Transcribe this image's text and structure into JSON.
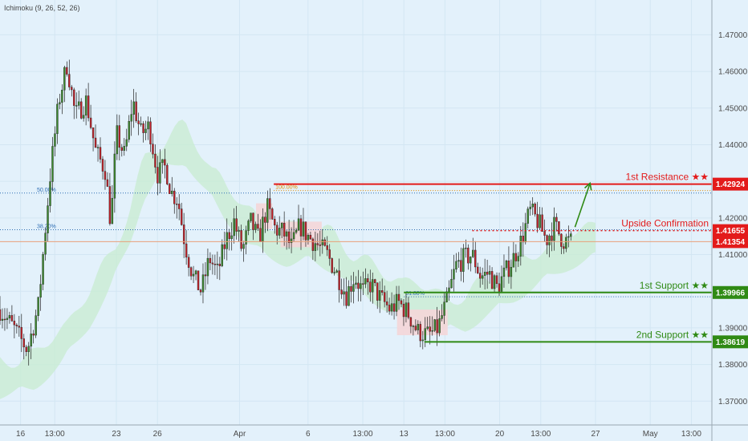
{
  "indicator": "Ichimoku (9, 26, 52, 26)",
  "chart_data": {
    "type": "candlestick",
    "instrument": "",
    "title": "",
    "x_ticks": [
      {
        "label": "16",
        "day": 0
      },
      {
        "label": "13:00",
        "day": 2.5
      },
      {
        "label": "23",
        "day": 7
      },
      {
        "label": "26",
        "day": 10
      },
      {
        "label": "Apr",
        "day": 16
      },
      {
        "label": "6",
        "day": 21
      },
      {
        "label": "13:00",
        "day": 25
      },
      {
        "label": "13",
        "day": 28
      },
      {
        "label": "13:00",
        "day": 31
      },
      {
        "label": "20",
        "day": 35
      },
      {
        "label": "13:00",
        "day": 38
      },
      {
        "label": "27",
        "day": 42
      },
      {
        "label": "May",
        "day": 46
      },
      {
        "label": "13:00",
        "day": 49
      }
    ],
    "x_range": [
      -1.5,
      50.5
    ],
    "y_ticks": [
      1.37,
      1.38,
      1.39,
      1.4,
      1.41,
      1.42,
      1.43,
      1.44,
      1.45,
      1.46,
      1.47
    ],
    "y_tick_labels": [
      "1.37000",
      "1.38000",
      "1.39000",
      "1.40000",
      "1.41000",
      "1.42000",
      "1.43000",
      "1.44000",
      "1.45000",
      "1.46000",
      "1.47000"
    ],
    "y_range": [
      1.3635,
      1.4795
    ],
    "close_path": [
      [
        -1.5,
        1.395
      ],
      [
        -0.5,
        1.39
      ],
      [
        0.5,
        1.384
      ],
      [
        1.3,
        1.396
      ],
      [
        2.2,
        1.433
      ],
      [
        2.8,
        1.452
      ],
      [
        3.4,
        1.462
      ],
      [
        4.0,
        1.448
      ],
      [
        4.8,
        1.452
      ],
      [
        5.5,
        1.438
      ],
      [
        6.2,
        1.433
      ],
      [
        6.6,
        1.418
      ],
      [
        7.0,
        1.443
      ],
      [
        7.6,
        1.437
      ],
      [
        8.2,
        1.452
      ],
      [
        8.8,
        1.443
      ],
      [
        9.4,
        1.445
      ],
      [
        10.0,
        1.432
      ],
      [
        10.6,
        1.434
      ],
      [
        11.0,
        1.427
      ],
      [
        11.5,
        1.425
      ],
      [
        12.0,
        1.413
      ],
      [
        12.6,
        1.404
      ],
      [
        13.2,
        1.4
      ],
      [
        13.8,
        1.409
      ],
      [
        14.4,
        1.405
      ],
      [
        15.0,
        1.414
      ],
      [
        15.6,
        1.419
      ],
      [
        16.2,
        1.411
      ],
      [
        16.8,
        1.419
      ],
      [
        17.4,
        1.414
      ],
      [
        18.0,
        1.423
      ],
      [
        18.6,
        1.417
      ],
      [
        19.2,
        1.416
      ],
      [
        19.8,
        1.412
      ],
      [
        20.4,
        1.418
      ],
      [
        21.0,
        1.415
      ],
      [
        21.6,
        1.413
      ],
      [
        22.4,
        1.41
      ],
      [
        23.2,
        1.404
      ],
      [
        23.8,
        1.399
      ],
      [
        24.4,
        1.404
      ],
      [
        25.0,
        1.4
      ],
      [
        25.6,
        1.402
      ],
      [
        26.3,
        1.398
      ],
      [
        27.0,
        1.395
      ],
      [
        27.6,
        1.397
      ],
      [
        28.3,
        1.394
      ],
      [
        29.0,
        1.389
      ],
      [
        29.8,
        1.388
      ],
      [
        30.5,
        1.39
      ],
      [
        31.2,
        1.398
      ],
      [
        31.8,
        1.407
      ],
      [
        32.4,
        1.409
      ],
      [
        33.0,
        1.41
      ],
      [
        33.6,
        1.404
      ],
      [
        34.2,
        1.405
      ],
      [
        34.8,
        1.401
      ],
      [
        35.4,
        1.405
      ],
      [
        36.0,
        1.409
      ],
      [
        36.6,
        1.414
      ],
      [
        37.2,
        1.422
      ],
      [
        37.8,
        1.419
      ],
      [
        38.4,
        1.414
      ],
      [
        39.0,
        1.418
      ],
      [
        39.6,
        1.414
      ],
      [
        40.2,
        1.4135
      ]
    ],
    "kumo_path": [
      [
        -1.5,
        1.376
      ],
      [
        1.0,
        1.378
      ],
      [
        3.0,
        1.385
      ],
      [
        5.0,
        1.395
      ],
      [
        6.5,
        1.405
      ],
      [
        8.0,
        1.418
      ],
      [
        9.0,
        1.43
      ],
      [
        10.5,
        1.438
      ],
      [
        12.0,
        1.44
      ],
      [
        13.5,
        1.432
      ],
      [
        15.0,
        1.424
      ],
      [
        16.5,
        1.418
      ],
      [
        18.0,
        1.414
      ],
      [
        19.5,
        1.412
      ],
      [
        21.0,
        1.413
      ],
      [
        23.0,
        1.41
      ],
      [
        25.0,
        1.404
      ],
      [
        27.0,
        1.399
      ],
      [
        29.0,
        1.398
      ],
      [
        30.5,
        1.394
      ],
      [
        32.5,
        1.394
      ],
      [
        34.0,
        1.398
      ],
      [
        36.0,
        1.402
      ],
      [
        38.0,
        1.407
      ],
      [
        40.0,
        1.411
      ],
      [
        42.0,
        1.414
      ]
    ],
    "fib": [
      {
        "label": "50.00%",
        "value": 1.4268,
        "x_start": -1.5,
        "x_end": 50.5,
        "color": "#2e6db3"
      },
      {
        "label": "38.20%",
        "value": 1.4168,
        "x_start": -1.5,
        "x_end": 50.5,
        "color": "#2e6db3"
      },
      {
        "label": "100.00%",
        "value": 1.4275,
        "x_start": 18.5,
        "x_end": 50.5,
        "color": "#e38b00"
      },
      {
        "label": "61.80%",
        "value": 1.3985,
        "x_start": 28.0,
        "x_end": 50.5,
        "color": "#2e6db3"
      }
    ],
    "levels": [
      {
        "label": "1st Resistance ★★",
        "value": 1.42924,
        "price_label": "1.42924",
        "x_start": 18.5,
        "color": "#e31b1b"
      },
      {
        "label": "Upside Confirmation",
        "value": 1.41655,
        "price_label": "1.41655",
        "x_start": 33.0,
        "color": "#e31b1b",
        "dashed": true
      },
      {
        "label": "1st Support ★★",
        "value": 1.39966,
        "price_label": "1.39966",
        "x_start": 28.0,
        "color": "#2f8a14"
      },
      {
        "label": "2nd Support ★★",
        "value": 1.38619,
        "price_label": "1.38619",
        "x_start": 29.5,
        "color": "#2f8a14"
      }
    ],
    "current_price": {
      "value": 1.41354,
      "label": "1.41354",
      "color": "#e31b1b"
    },
    "arrow": {
      "from": [
        40.5,
        1.4175
      ],
      "to": [
        41.6,
        1.4295
      ],
      "color": "#2f8a14"
    }
  }
}
